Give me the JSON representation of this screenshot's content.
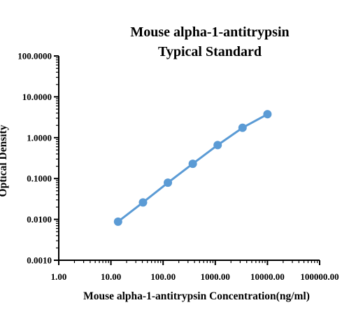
{
  "chart_data": {
    "type": "line",
    "title": [
      "Mouse alpha-1-antitrypsin",
      "Typical Standard"
    ],
    "xlabel": "Mouse alpha-1-antitrypsin Concentration(ng/ml)",
    "ylabel": "Optical Density",
    "x_scale": "log",
    "y_scale": "log",
    "xlim": [
      1,
      100000
    ],
    "ylim": [
      0.001,
      100
    ],
    "x_ticks": [
      1,
      10,
      100,
      1000,
      10000,
      100000
    ],
    "x_tick_labels": [
      "1.00",
      "10.00",
      "100.00",
      "1000.00",
      "10000.00",
      "100000.00"
    ],
    "y_ticks": [
      0.001,
      0.01,
      0.1,
      1,
      10,
      100
    ],
    "y_tick_labels": [
      "0.0010",
      "0.0100",
      "0.1000",
      "1.0000",
      "10.0000",
      "100.0000"
    ],
    "grid": false,
    "legend": false,
    "series": [
      {
        "x": [
          13.7,
          41.2,
          123.5,
          370.4,
          1111,
          3333,
          10000
        ],
        "y": [
          0.0088,
          0.026,
          0.079,
          0.23,
          0.66,
          1.75,
          3.75
        ]
      }
    ],
    "colors": {
      "series": "#5b9bd5",
      "axis": "#000000",
      "text": "#000000"
    }
  }
}
